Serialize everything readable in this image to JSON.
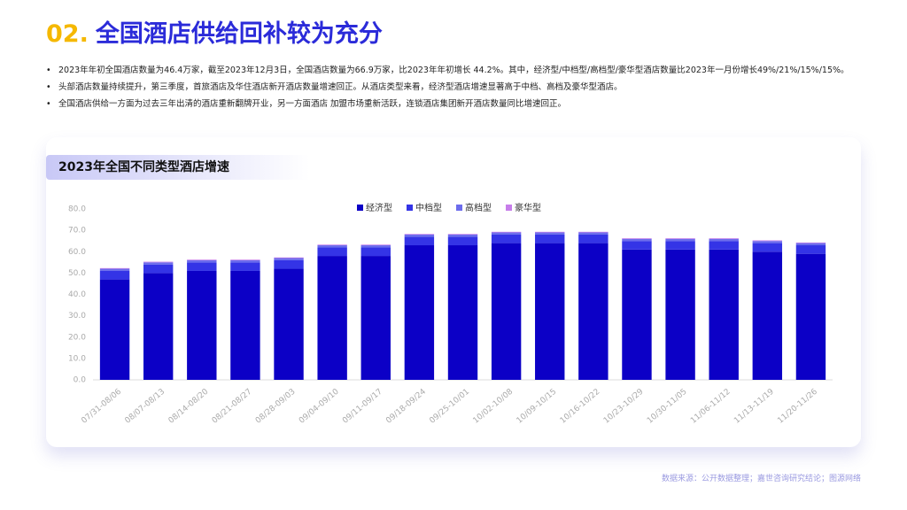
{
  "header": {
    "number": "02.",
    "title": "全国酒店供给回补较为充分"
  },
  "bullets": [
    "2023年年初全国酒店数量为46.4万家，截至2023年12月3日，全国酒店数量为66.9万家，比2023年年初增长 44.2%。其中，经济型/中档型/高档型/豪华型酒店数量比2023年一月份增长49%/21%/15%/15%。",
    "头部酒店数量持续提升，第三季度，首旅酒店及华住酒店新开酒店数量增速回正。从酒店类型来看，经济型酒店增速显著高于中档、高档及豪华型酒店。",
    "全国酒店供给一方面为过去三年出清的酒店重新翻牌开业，另一方面酒店 加盟市场重新活跃，连锁酒店集团新开酒店数量同比增速回正。"
  ],
  "source": "数据来源：公开数据整理；嘉世咨询研究结论；图源网络",
  "chart_data": {
    "type": "stacked-bar",
    "title": "2023年全国不同类型酒店增速",
    "categories": [
      "07/31-08/06",
      "08/07-08/13",
      "08/14-08/20",
      "08/21-08/27",
      "08/28-09/03",
      "09/04-09/10",
      "09/11-09/17",
      "09/18-09/24",
      "09/25-10/01",
      "10/02-10/08",
      "10/09-10/15",
      "10/16-10/22",
      "10/23-10/29",
      "10/30-11/05",
      "11/06-11/12",
      "11/13-11/19",
      "11/20-11/26"
    ],
    "series": [
      {
        "name": "经济型",
        "color": "#0c00c6",
        "values": [
          47,
          50,
          51,
          51,
          52,
          58,
          58,
          63,
          63,
          64,
          64,
          64,
          61,
          61,
          61,
          60,
          59
        ]
      },
      {
        "name": "中档型",
        "color": "#3434e6",
        "values": [
          4,
          4,
          4,
          4,
          4,
          4,
          4,
          4,
          4,
          4,
          4,
          4,
          4,
          4,
          4,
          4,
          4
        ]
      },
      {
        "name": "高档型",
        "color": "#6c6cec",
        "values": [
          1,
          1,
          1,
          1,
          1,
          1,
          1,
          1,
          1,
          1,
          1,
          1,
          1,
          1,
          1,
          1,
          1
        ]
      },
      {
        "name": "豪华型",
        "color": "#c77dea",
        "values": [
          0.3,
          0.3,
          0.3,
          0.3,
          0.3,
          0.3,
          0.3,
          0.3,
          0.3,
          0.3,
          0.3,
          0.3,
          0.3,
          0.3,
          0.3,
          0.3,
          0.3
        ]
      }
    ],
    "ylim": [
      0,
      80
    ],
    "yticks": [
      {
        "value": 0,
        "label": "0.0"
      },
      {
        "value": 10,
        "label": "10.0"
      },
      {
        "value": 20,
        "label": "20.0"
      },
      {
        "value": 30,
        "label": "30.0"
      },
      {
        "value": 40,
        "label": "40.0"
      },
      {
        "value": 50,
        "label": "50.0"
      },
      {
        "value": 60,
        "label": "60.0"
      },
      {
        "value": 70,
        "label": "70.0"
      },
      {
        "value": 80,
        "label": "80.0"
      }
    ],
    "grid": false,
    "legend": "top"
  }
}
